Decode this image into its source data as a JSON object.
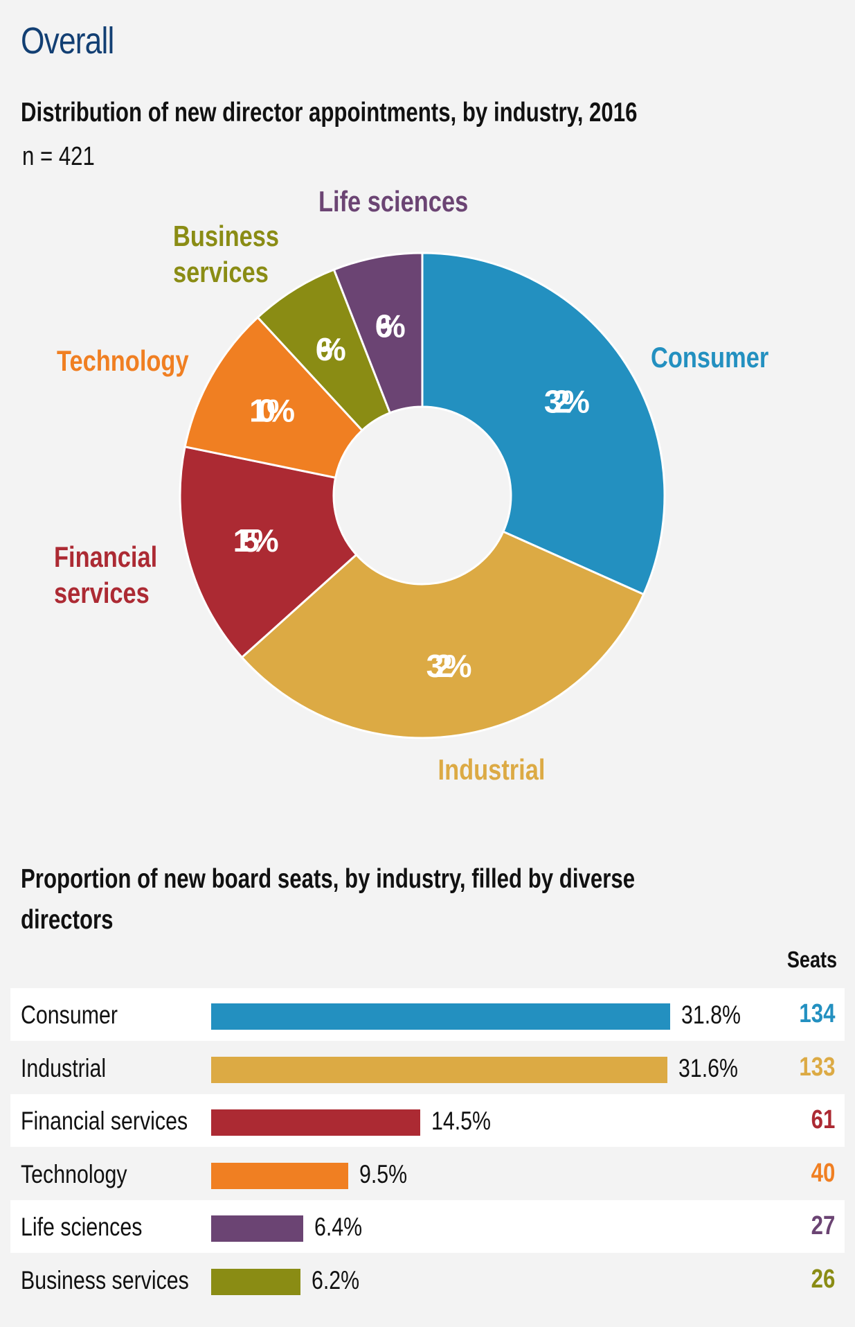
{
  "header": {
    "title": "Overall",
    "donut_title": "Distribution of new director appointments, by industry, 2016",
    "n_label": "n = 421",
    "bars_title": "Proportion of new board seats, by industry, filled by diverse directors",
    "seats_header": "Seats"
  },
  "colors": {
    "consumer": "#2390c0",
    "industrial": "#dcaa44",
    "financial": "#ac2a33",
    "technology": "#f07f22",
    "business": "#8a8c14",
    "life": "#6b4473"
  },
  "chart_data": [
    {
      "type": "pie",
      "title": "Distribution of new director appointments, by industry, 2016",
      "n": "n = 421",
      "slices": [
        {
          "name": "Consumer",
          "value": 32,
          "label": "32%",
          "color": "#2390c0"
        },
        {
          "name": "Industrial",
          "value": 32,
          "label": "32%",
          "color": "#dcaa44"
        },
        {
          "name": "Financial services",
          "value": 15,
          "label": "15%",
          "color": "#ac2a33"
        },
        {
          "name": "Technology",
          "value": 10,
          "label": "10%",
          "color": "#f07f22"
        },
        {
          "name": "Business services",
          "value": 6,
          "label": "6%",
          "color": "#8a8c14"
        },
        {
          "name": "Life sciences",
          "value": 6,
          "label": "6%",
          "color": "#6b4473"
        }
      ]
    },
    {
      "type": "bar",
      "title": "Proportion of new board seats, by industry, filled by diverse directors",
      "categories": [
        "Consumer",
        "Industrial",
        "Financial services",
        "Technology",
        "Life sciences",
        "Business services"
      ],
      "values": [
        31.8,
        31.6,
        14.5,
        9.5,
        6.4,
        6.2
      ],
      "value_labels": [
        "31.8%",
        "31.6%",
        "14.5%",
        "9.5%",
        "6.4%",
        "6.2%"
      ],
      "seats": [
        134,
        133,
        61,
        40,
        27,
        26
      ],
      "colors": [
        "#2390c0",
        "#dcaa44",
        "#ac2a33",
        "#f07f22",
        "#6b4473",
        "#8a8c14"
      ],
      "column_header": "Seats"
    }
  ]
}
